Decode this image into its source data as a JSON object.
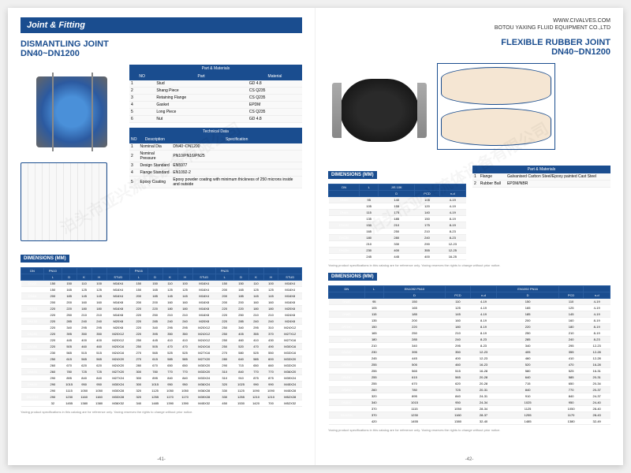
{
  "left": {
    "header": "Joint & Fitting",
    "title": "DISMANTLING JOINT\nDN40~DN1200",
    "parts": {
      "header": "Part & Materials",
      "cols": [
        "NO",
        "Part",
        "Material"
      ],
      "rows": [
        [
          "1",
          "Stud",
          "GD 4.8"
        ],
        [
          "2",
          "Shang Piece",
          "CS Q235"
        ],
        [
          "3",
          "Retaining Flange",
          "CS Q235"
        ],
        [
          "4",
          "Gasket",
          "EPDM"
        ],
        [
          "5",
          "Long Piece",
          "CS Q235"
        ],
        [
          "6",
          "Nut",
          "GD 4.8"
        ]
      ]
    },
    "tech": {
      "header": "Technical Data",
      "cols": [
        "NO",
        "Description",
        "Specification"
      ],
      "rows": [
        [
          "1",
          "Nominal Dia",
          "DN40~DN1200"
        ],
        [
          "2",
          "Nominal Pressure",
          "PN10/PN16/PN25"
        ],
        [
          "3",
          "Design Standard",
          "EN5977"
        ],
        [
          "4",
          "Flange Standard",
          "EN1092-2"
        ],
        [
          "5",
          "Epoxy Coating",
          "Epoxy powder coating with minimum thickness of 250 microns inside and outside"
        ]
      ]
    },
    "dims": {
      "label": "DIMENSIONS (MM)",
      "hdr1": [
        "DN",
        "PN10",
        "",
        "",
        "",
        "",
        "PN16",
        "",
        "",
        "",
        "",
        "PN25",
        "",
        "",
        "",
        ""
      ],
      "hdr2": [
        "",
        "L",
        "D",
        "K",
        "H",
        "STUD",
        "L",
        "D",
        "K",
        "H",
        "STUD",
        "L",
        "D",
        "K",
        "H",
        "STUD"
      ],
      "rows": [
        [
          "DN40",
          "150",
          "150",
          "110",
          "100",
          "M16X4",
          "150",
          "150",
          "110",
          "100",
          "M16X4",
          "150",
          "150",
          "110",
          "100",
          "M16X4"
        ],
        [
          "DN50",
          "150",
          "165",
          "125",
          "125",
          "M16X4",
          "150",
          "165",
          "125",
          "125",
          "M16X4",
          "200",
          "165",
          "125",
          "125",
          "M16X4"
        ],
        [
          "DN65",
          "200",
          "185",
          "145",
          "145",
          "M16X4",
          "200",
          "185",
          "145",
          "145",
          "M16X4",
          "200",
          "185",
          "145",
          "145",
          "M16X8"
        ],
        [
          "DN80",
          "200",
          "200",
          "160",
          "160",
          "M16X8",
          "200",
          "200",
          "160",
          "160",
          "M16X8",
          "200",
          "200",
          "160",
          "160",
          "M16X8"
        ],
        [
          "DN100",
          "220",
          "220",
          "180",
          "180",
          "M16X8",
          "220",
          "220",
          "180",
          "180",
          "M16X8",
          "220",
          "220",
          "180",
          "180",
          "M20X8"
        ],
        [
          "DN125",
          "220",
          "250",
          "210",
          "210",
          "M16X8",
          "220",
          "250",
          "210",
          "210",
          "M16X8",
          "220",
          "250",
          "210",
          "210",
          "M24X8"
        ],
        [
          "DN150",
          "220",
          "285",
          "240",
          "240",
          "M20X8",
          "220",
          "285",
          "240",
          "240",
          "M20X8",
          "220",
          "285",
          "240",
          "240",
          "M24X8"
        ],
        [
          "DN200",
          "220",
          "340",
          "295",
          "295",
          "M20X8",
          "220",
          "340",
          "295",
          "295",
          "M20X12",
          "250",
          "340",
          "295",
          "310",
          "M24X12"
        ],
        [
          "DN250",
          "220",
          "395",
          "350",
          "350",
          "M20X12",
          "220",
          "395",
          "350",
          "350",
          "M24X12",
          "250",
          "405",
          "355",
          "370",
          "M27X12"
        ],
        [
          "DN300",
          "220",
          "445",
          "400",
          "400",
          "M20X12",
          "250",
          "445",
          "410",
          "410",
          "M24X12",
          "250",
          "460",
          "410",
          "430",
          "M27X16"
        ],
        [
          "DN350",
          "220",
          "505",
          "460",
          "460",
          "M20X16",
          "250",
          "505",
          "470",
          "470",
          "M24X16",
          "250",
          "520",
          "470",
          "490",
          "M30X16"
        ],
        [
          "DN400",
          "230",
          "565",
          "515",
          "515",
          "M24X16",
          "270",
          "565",
          "525",
          "525",
          "M27X16",
          "270",
          "580",
          "525",
          "550",
          "M33X16"
        ],
        [
          "DN450",
          "250",
          "615",
          "565",
          "565",
          "M24X20",
          "270",
          "615",
          "585",
          "585",
          "M27X20",
          "280",
          "640",
          "585",
          "600",
          "M33X20"
        ],
        [
          "DN500",
          "260",
          "670",
          "620",
          "620",
          "M24X20",
          "280",
          "670",
          "650",
          "650",
          "M30X20",
          "290",
          "715",
          "650",
          "660",
          "M33X20"
        ],
        [
          "DN600",
          "260",
          "780",
          "725",
          "725",
          "M27X20",
          "300",
          "780",
          "770",
          "770",
          "M33X20",
          "310",
          "840",
          "770",
          "770",
          "M36X20"
        ],
        [
          "DN700",
          "290",
          "895",
          "840",
          "840",
          "M27X24",
          "300",
          "895",
          "840",
          "840",
          "M33X24",
          "310",
          "910",
          "875",
          "875",
          "M39X24"
        ],
        [
          "DN800",
          "290",
          "1015",
          "950",
          "950",
          "M30X24",
          "300",
          "1015",
          "950",
          "950",
          "M36X24",
          "320",
          "1025",
          "990",
          "990",
          "M45X24"
        ],
        [
          "DN900",
          "290",
          "1115",
          "1050",
          "1050",
          "M30X28",
          "320",
          "1125",
          "1050",
          "1050",
          "M36X28",
          "330",
          "1125",
          "1090",
          "1090",
          "M45X28"
        ],
        [
          "DN1000",
          "290",
          "1230",
          "1160",
          "1160",
          "M33X28",
          "320",
          "1255",
          "1170",
          "1170",
          "M39X28",
          "330",
          "1255",
          "1210",
          "1210",
          "M52X28"
        ],
        [
          "DN1200",
          "32",
          "1455",
          "1380",
          "1380",
          "M36X32",
          "340",
          "1485",
          "1390",
          "1390",
          "M45X32",
          "450",
          "1530",
          "1420",
          "700",
          "M52X32"
        ]
      ]
    },
    "footnote": "Yaxing product specifications in this catalog are for reference only. Yaxing reserves the rights to change without prior notice.",
    "pagenum": "-41-"
  },
  "right": {
    "header1": "WWW.CIVALVES.COM",
    "header2": "BOTOU YAXING FLUID EQUIPMENT CO.,LTD",
    "title": "FLEXIBLE RUBBER JOINT\nDN40~DN1200",
    "dims1": {
      "label": "DIMENSIONS (MM)",
      "hdr1": [
        "DN",
        "L",
        "JIS 10K",
        "",
        ""
      ],
      "hdr2": [
        "",
        "",
        "D",
        "PCD",
        "n-d"
      ],
      "rows": [
        [
          "DN40",
          "95",
          "140",
          "105",
          "4-19"
        ],
        [
          "DN50",
          "105",
          "155",
          "120",
          "4-19"
        ],
        [
          "DN65",
          "115",
          "175",
          "140",
          "4-19"
        ],
        [
          "DN80",
          "135",
          "185",
          "150",
          "8-19"
        ],
        [
          "DN100",
          "150",
          "210",
          "175",
          "8-19"
        ],
        [
          "DN125",
          "165",
          "250",
          "210",
          "8-23"
        ],
        [
          "DN150",
          "180",
          "280",
          "240",
          "8-23"
        ],
        [
          "DN200",
          "210",
          "330",
          "290",
          "12-23"
        ],
        [
          "DN250",
          "230",
          "400",
          "355",
          "12-25"
        ],
        [
          "DN300",
          "245",
          "445",
          "400",
          "16-25"
        ]
      ]
    },
    "parts": {
      "header": "Part & Materials",
      "rows": [
        [
          "1",
          "Flange",
          "Galvanised Carbon Steel/Epoxy painted Cast Steel"
        ],
        [
          "2",
          "Rubber Ball",
          "EPDM/NBR"
        ]
      ]
    },
    "dims2": {
      "label": "DIMENSIONS (MM)",
      "hdr1": [
        "DN",
        "L",
        "EN1092 PN10",
        "",
        "",
        "EN1092 PN16",
        "",
        ""
      ],
      "hdr2": [
        "",
        "",
        "D",
        "PCD",
        "n-d",
        "D",
        "PCD",
        "n-d"
      ],
      "rows": [
        [
          "DN40",
          "95",
          "150",
          "110",
          "4-19",
          "150",
          "110",
          "4-19"
        ],
        [
          "DN50",
          "105",
          "165",
          "125",
          "4-19",
          "165",
          "125",
          "4-19"
        ],
        [
          "DN65",
          "115",
          "185",
          "145",
          "4-19",
          "185",
          "145",
          "4-19"
        ],
        [
          "DN80",
          "135",
          "200",
          "160",
          "8-19",
          "200",
          "160",
          "8-19"
        ],
        [
          "DN100",
          "150",
          "220",
          "180",
          "8-19",
          "220",
          "180",
          "8-19"
        ],
        [
          "DN125",
          "165",
          "250",
          "210",
          "8-19",
          "250",
          "210",
          "8-19"
        ],
        [
          "DN150",
          "180",
          "285",
          "240",
          "8-23",
          "285",
          "240",
          "8-23"
        ],
        [
          "DN200",
          "210",
          "340",
          "295",
          "8-23",
          "340",
          "295",
          "12-23"
        ],
        [
          "DN250",
          "230",
          "395",
          "350",
          "12-23",
          "405",
          "355",
          "12-28"
        ],
        [
          "DN300",
          "245",
          "445",
          "400",
          "12-23",
          "460",
          "410",
          "12-28"
        ],
        [
          "DN350",
          "255",
          "505",
          "460",
          "16-23",
          "520",
          "470",
          "16-28"
        ],
        [
          "DN400",
          "255",
          "565",
          "515",
          "16-28",
          "580",
          "525",
          "16-31"
        ],
        [
          "DN450",
          "255",
          "615",
          "565",
          "20-28",
          "640",
          "585",
          "20-31"
        ],
        [
          "DN500",
          "255",
          "670",
          "620",
          "20-28",
          "715",
          "650",
          "20-34"
        ],
        [
          "DN600",
          "260",
          "780",
          "725",
          "20-31",
          "840",
          "770",
          "20-37"
        ],
        [
          "DN700",
          "320",
          "895",
          "840",
          "24-31",
          "910",
          "840",
          "24-37"
        ],
        [
          "DN800",
          "340",
          "1015",
          "950",
          "24-34",
          "1025",
          "950",
          "24-40"
        ],
        [
          "DN900",
          "370",
          "1115",
          "1050",
          "28-34",
          "1125",
          "1050",
          "28-40"
        ],
        [
          "DN1000",
          "370",
          "1230",
          "1160",
          "28-37",
          "1255",
          "1170",
          "28-43"
        ],
        [
          "DN1200",
          "420",
          "1455",
          "1380",
          "32-40",
          "1485",
          "1380",
          "32-49"
        ]
      ]
    },
    "footnote": "Yaxing product specifications in this catalog are for reference only. Yaxing reserves the rights to change without prior notice.",
    "pagenum": "-42-"
  }
}
